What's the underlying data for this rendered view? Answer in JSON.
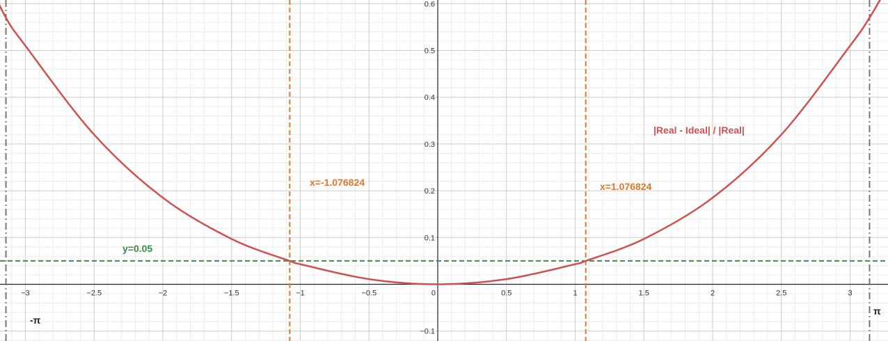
{
  "chart_data": {
    "type": "line",
    "xlim": [
      -3.29,
      3.27
    ],
    "ylim": [
      -0.118,
      0.61
    ],
    "grid": true,
    "x_ticks": [
      -3,
      -2.5,
      -2,
      -1.5,
      -1,
      -0.5,
      0,
      0.5,
      1,
      1.5,
      2,
      2.5,
      3
    ],
    "x_tick_labels": [
      "−3",
      "−2.5",
      "−2",
      "−1.5",
      "−1",
      "−0.5",
      "0",
      "0.5",
      "1",
      "1.5",
      "2",
      "2.5",
      "3"
    ],
    "y_ticks": [
      -0.1,
      0.1,
      0.2,
      0.3,
      0.4,
      0.5,
      0.6
    ],
    "y_tick_labels": [
      "−0.1",
      "0.1",
      "0.2",
      "0.3",
      "0.4",
      "0.5",
      "0.6"
    ],
    "series": [
      {
        "name": "|Real - Ideal| / |Real|",
        "color": "#d05050",
        "x": [
          -3.29,
          -3.1416,
          -3,
          -2.5,
          -2,
          -1.5,
          -1.076824,
          -1,
          -0.5,
          0,
          0.5,
          1,
          1.076824,
          1.5,
          2,
          2.5,
          3,
          3.1416,
          3.27
        ],
        "y": [
          0.66,
          0.57,
          0.51,
          0.32,
          0.185,
          0.097,
          0.05,
          0.043,
          0.011,
          0,
          0.011,
          0.043,
          0.05,
          0.097,
          0.185,
          0.32,
          0.51,
          0.57,
          0.635
        ]
      }
    ],
    "reference_lines": [
      {
        "orientation": "vertical",
        "value": -1.076824,
        "label": "x=-1.076824",
        "color": "#e07828",
        "style": "dashed"
      },
      {
        "orientation": "vertical",
        "value": 1.076824,
        "label": "x=1.076824",
        "color": "#e07828",
        "style": "dashed"
      },
      {
        "orientation": "horizontal",
        "value": 0.05,
        "label": "y=0.05",
        "color": "#388c46",
        "style": "dashed"
      },
      {
        "orientation": "vertical",
        "value": -3.1416,
        "label": "-π",
        "color": "#777777",
        "style": "dashdot"
      },
      {
        "orientation": "vertical",
        "value": 3.1416,
        "label": "π",
        "color": "#777777",
        "style": "dashdot"
      }
    ],
    "annotations": [
      {
        "text": "|Real - Ideal| / |Real|",
        "color": "#d05050"
      },
      {
        "text": "x=-1.076824",
        "color": "#e07828"
      },
      {
        "text": "x=1.076824",
        "color": "#e07828"
      },
      {
        "text": "y=0.05",
        "color": "#388c46"
      },
      {
        "text": "-π",
        "color": "#222222"
      },
      {
        "text": "π",
        "color": "#222222"
      }
    ]
  }
}
